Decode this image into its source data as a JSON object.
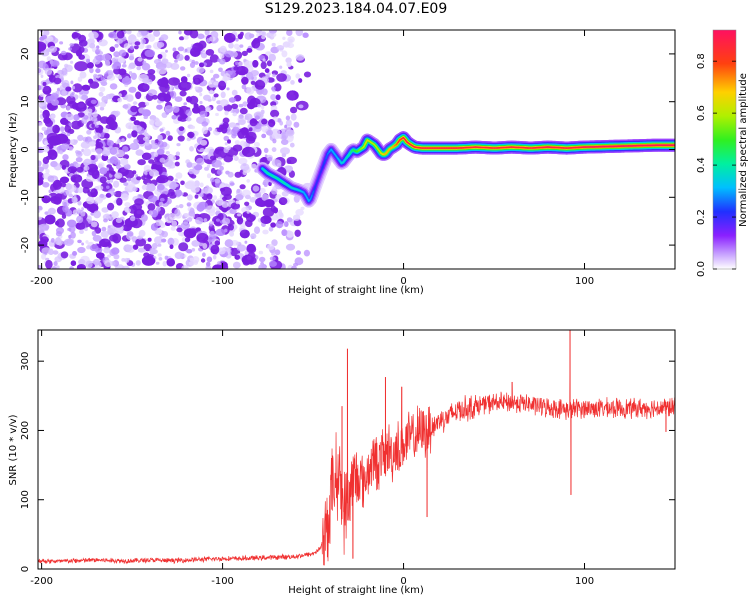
{
  "title": "S129.2023.184.04.07.E09",
  "colors": {
    "signal_line": "#f03030",
    "speckle": "#7a1fe0",
    "frame": "#000000"
  },
  "chart_data": [
    {
      "type": "heatmap",
      "name": "spectrogram",
      "xlabel": "Height of straight line (km)",
      "ylabel": "Frequency (Hz)",
      "xlim": [
        -202,
        150
      ],
      "ylim": [
        -25,
        25
      ],
      "xticks": [
        -200,
        -100,
        0,
        100
      ],
      "xtick_labels": [
        "-200",
        "-100",
        "0",
        "100"
      ],
      "yticks": [
        -20,
        -10,
        0,
        10,
        20
      ],
      "ytick_labels": [
        "-20",
        "-10",
        "0",
        "10",
        "20"
      ],
      "colorbar": {
        "label": "Normalized spectral amplitude",
        "range": [
          0,
          0.92
        ],
        "ticks": [
          0.0,
          0.2,
          0.4,
          0.6,
          0.8
        ],
        "tick_labels": [
          "0.0",
          "0.2",
          "0.4",
          "0.6",
          "0.8"
        ]
      },
      "ridge": {
        "x": [
          -78,
          -75,
          -70,
          -66,
          -62,
          -58,
          -55,
          -52,
          -50,
          -48,
          -46,
          -44,
          -42,
          -40,
          -38,
          -36,
          -34,
          -32,
          -30,
          -28,
          -26,
          -24,
          -22,
          -20,
          -18,
          -16,
          -14,
          -12,
          -10,
          -8,
          -6,
          -4,
          -2,
          0,
          2,
          4,
          6,
          10,
          20,
          30,
          40,
          50,
          60,
          70,
          80,
          90,
          100,
          110,
          120,
          130,
          140,
          150
        ],
        "y": [
          -4,
          -5,
          -6,
          -7,
          -8,
          -8.5,
          -9,
          -11,
          -9,
          -7,
          -5,
          -3,
          -1,
          0,
          -1,
          -2,
          -3,
          -2,
          -1,
          0,
          -0.5,
          0,
          0.5,
          2,
          1.5,
          1,
          0,
          -1,
          -1,
          0,
          0.5,
          1,
          2,
          2.5,
          1.5,
          1,
          0.5,
          0.3,
          0.3,
          0.3,
          0.5,
          0.3,
          0.5,
          0.3,
          0.5,
          0.3,
          0.5,
          0.6,
          0.7,
          0.8,
          0.9,
          0.9
        ],
        "amplitude": [
          0.35,
          0.4,
          0.4,
          0.4,
          0.35,
          0.35,
          0.3,
          0.3,
          0.25,
          0.2,
          0.2,
          0.22,
          0.25,
          0.3,
          0.3,
          0.3,
          0.35,
          0.35,
          0.4,
          0.45,
          0.5,
          0.55,
          0.6,
          0.65,
          0.6,
          0.6,
          0.6,
          0.65,
          0.7,
          0.7,
          0.7,
          0.75,
          0.8,
          0.85,
          0.85,
          0.85,
          0.85,
          0.85,
          0.85,
          0.85,
          0.85,
          0.85,
          0.85,
          0.85,
          0.88,
          0.85,
          0.88,
          0.9,
          0.9,
          0.9,
          0.9,
          0.9
        ]
      }
    },
    {
      "type": "line",
      "name": "snr",
      "xlabel": "Height of straight line (km)",
      "ylabel": "SNR (10 * v/v)",
      "xlim": [
        -202,
        150
      ],
      "ylim": [
        0,
        345
      ],
      "xticks": [
        -200,
        -100,
        0,
        100
      ],
      "xtick_labels": [
        "-200",
        "-100",
        "0",
        "100"
      ],
      "yticks": [
        0,
        100,
        200,
        300
      ],
      "ytick_labels": [
        "0",
        "100",
        "200",
        "300"
      ],
      "x": [
        -202,
        -190,
        -180,
        -170,
        -160,
        -150,
        -140,
        -130,
        -120,
        -110,
        -100,
        -90,
        -80,
        -70,
        -60,
        -55,
        -50,
        -46,
        -42,
        -40,
        -38,
        -36,
        -34,
        -32,
        -30,
        -28,
        -26,
        -24,
        -22,
        -20,
        -18,
        -16,
        -14,
        -12,
        -10,
        -8,
        -6,
        -4,
        -2,
        0,
        4,
        8,
        12,
        16,
        20,
        25,
        30,
        35,
        40,
        45,
        50,
        55,
        60,
        65,
        70,
        75,
        80,
        85,
        90,
        92,
        95,
        100,
        110,
        120,
        130,
        140,
        150
      ],
      "y": [
        12,
        11,
        12,
        13,
        12,
        12,
        13,
        12,
        13,
        14,
        15,
        15,
        16,
        17,
        18,
        20,
        22,
        30,
        60,
        110,
        130,
        140,
        100,
        80,
        110,
        120,
        130,
        135,
        120,
        140,
        150,
        160,
        150,
        165,
        160,
        175,
        160,
        180,
        170,
        180,
        190,
        195,
        200,
        205,
        215,
        220,
        230,
        232,
        235,
        238,
        240,
        240,
        240,
        240,
        237,
        235,
        233,
        232,
        230,
        230,
        232,
        232,
        232,
        232,
        232,
        233,
        233
      ],
      "spikes": [
        {
          "x": -31,
          "y": 318
        },
        {
          "x": -34,
          "y": 235
        },
        {
          "x": -28,
          "y": 15
        },
        {
          "x": -10,
          "y": 277
        },
        {
          "x": -1,
          "y": 263
        },
        {
          "x": 13,
          "y": 75
        },
        {
          "x": 92,
          "y": 345
        },
        {
          "x": 92.5,
          "y": 107
        },
        {
          "x": 60,
          "y": 270
        },
        {
          "x": 145,
          "y": 198
        }
      ]
    }
  ]
}
